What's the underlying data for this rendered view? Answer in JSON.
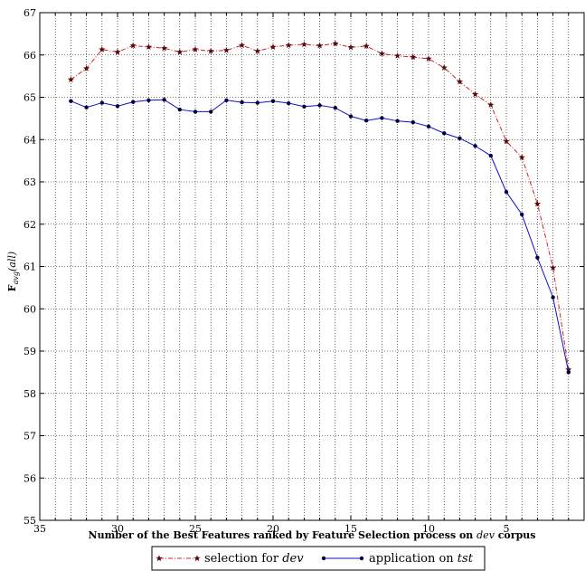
{
  "chart_data": {
    "type": "line",
    "xlabel_prefix": "Number of the Best Features ranked by Feature Selection process on ",
    "xlabel_italic": "dev",
    "xlabel_suffix": " corpus",
    "ylabel_main": "F",
    "ylabel_sub": "avg",
    "ylabel_tail": "(all)",
    "xlim": [
      35,
      0
    ],
    "ylim": [
      55,
      67
    ],
    "x_ticks": [
      35,
      30,
      25,
      20,
      15,
      10,
      5
    ],
    "y_ticks": [
      55,
      56,
      57,
      58,
      59,
      60,
      61,
      62,
      63,
      64,
      65,
      66,
      67
    ],
    "grid": true,
    "x_reversed": true,
    "legend_position": "bottom-center",
    "x": [
      33,
      32,
      31,
      30,
      29,
      28,
      27,
      26,
      25,
      24,
      23,
      22,
      21,
      20,
      19,
      18,
      17,
      16,
      15,
      14,
      13,
      12,
      11,
      10,
      9,
      8,
      7,
      6,
      5,
      4,
      3,
      2,
      1
    ],
    "series": [
      {
        "name_prefix": "selection for ",
        "name_italic": "dev",
        "color": "#d62020",
        "marker_color": "#5a0a0a",
        "line_style": "dashdot",
        "marker": "star",
        "values": [
          65.42,
          65.68,
          66.13,
          66.07,
          66.22,
          66.19,
          66.16,
          66.07,
          66.13,
          66.09,
          66.11,
          66.23,
          66.09,
          66.19,
          66.23,
          66.25,
          66.22,
          66.27,
          66.18,
          66.21,
          66.03,
          65.98,
          65.95,
          65.91,
          65.7,
          65.37,
          65.07,
          64.82,
          63.96,
          63.58,
          62.48,
          60.97,
          58.56
        ]
      },
      {
        "name_prefix": "application on ",
        "name_italic": "tst",
        "color": "#1010c8",
        "marker_color": "#000040",
        "line_style": "solid",
        "marker": "dot",
        "values": [
          64.91,
          64.76,
          64.87,
          64.79,
          64.89,
          64.93,
          64.94,
          64.71,
          64.66,
          64.66,
          64.93,
          64.88,
          64.87,
          64.91,
          64.86,
          64.78,
          64.81,
          64.75,
          64.55,
          64.45,
          64.51,
          64.44,
          64.41,
          64.31,
          64.15,
          64.03,
          63.85,
          63.62,
          62.76,
          62.23,
          61.21,
          60.27,
          58.5
        ]
      }
    ]
  }
}
